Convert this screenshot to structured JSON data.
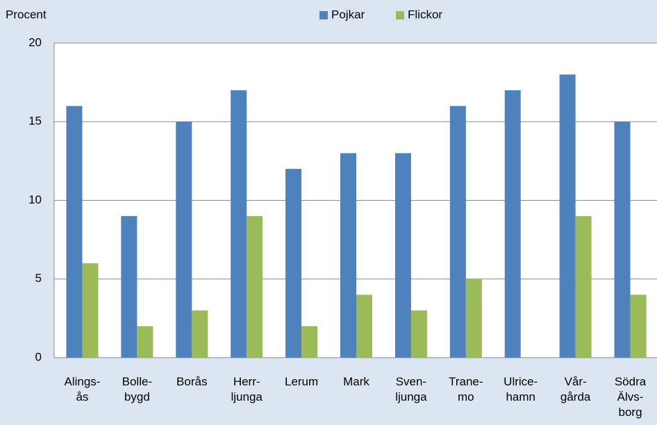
{
  "chart_data": {
    "type": "bar",
    "y_label": "Procent",
    "categories": [
      "Alings-\nås",
      "Bolle-\nbygd",
      "Borås",
      "Herr-\nljunga",
      "Lerum",
      "Mark",
      "Sven-\nljunga",
      "Trane-\nmo",
      "Ulrice-\nhamn",
      "Vår-\ngårda",
      "Södra\nÄlvs-\nborg"
    ],
    "series": [
      {
        "name": "Pojkar",
        "color": "#4f81bd",
        "values": [
          16,
          9,
          15,
          17,
          12,
          13,
          13,
          16,
          17,
          18,
          15
        ]
      },
      {
        "name": "Flickor",
        "color": "#9bbb59",
        "values": [
          6,
          2,
          3,
          9,
          2,
          4,
          3,
          5,
          null,
          9,
          4
        ]
      }
    ],
    "ylim": [
      0,
      20
    ],
    "yticks": [
      0,
      5,
      10,
      15,
      20
    ],
    "grid": true,
    "legend": "top"
  }
}
